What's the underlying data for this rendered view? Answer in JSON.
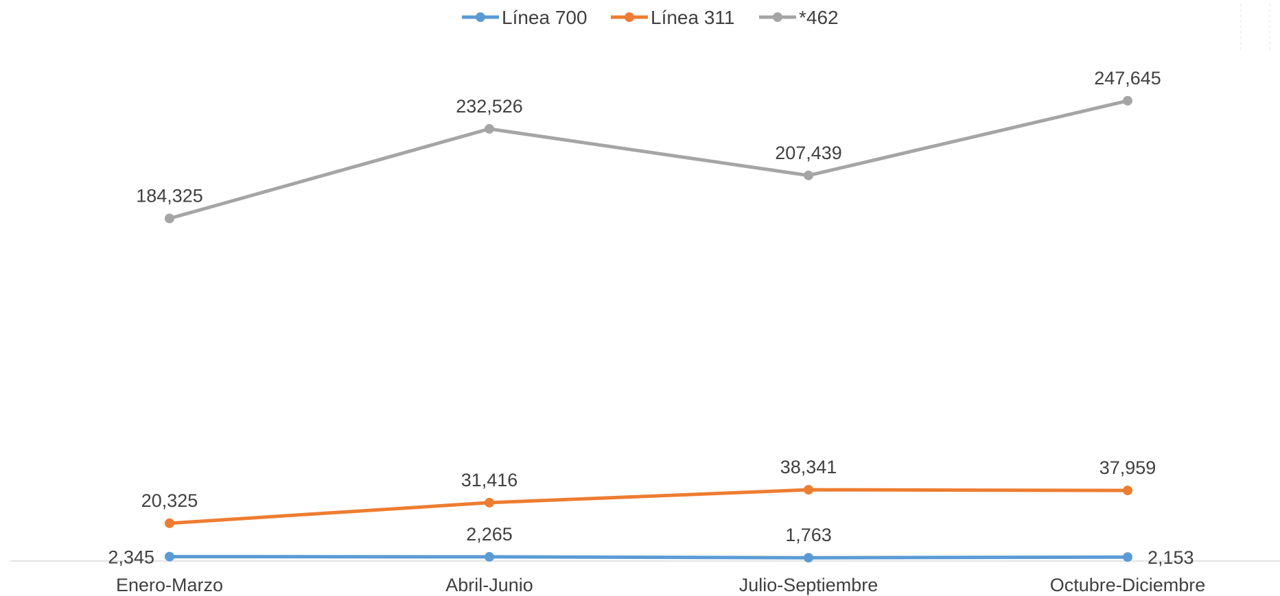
{
  "chart_data": {
    "type": "line",
    "title": "",
    "xlabel": "",
    "ylabel": "",
    "categories": [
      "Enero-Marzo",
      "Abril-Junio",
      "Julio-Septiembre",
      "Octubre-Diciembre"
    ],
    "ylim": [
      0,
      300000
    ],
    "grid": false,
    "legend": "top-center",
    "series": [
      {
        "name": "Línea 700",
        "color": "#5B9BD5",
        "values": [
          2345,
          2265,
          1763,
          2153
        ],
        "labels": [
          "2,345",
          "2,265",
          "1,763",
          "2,153"
        ]
      },
      {
        "name": "Línea 311",
        "color": "#ED7D31",
        "values": [
          20325,
          31416,
          38341,
          37959
        ],
        "labels": [
          "20,325",
          "31,416",
          "38,341",
          "37,959"
        ]
      },
      {
        "name": "*462",
        "color": "#A5A5A5",
        "values": [
          184325,
          232526,
          207439,
          247645
        ],
        "labels": [
          "184,325",
          "232,526",
          "207,439",
          "247,645"
        ]
      }
    ]
  }
}
